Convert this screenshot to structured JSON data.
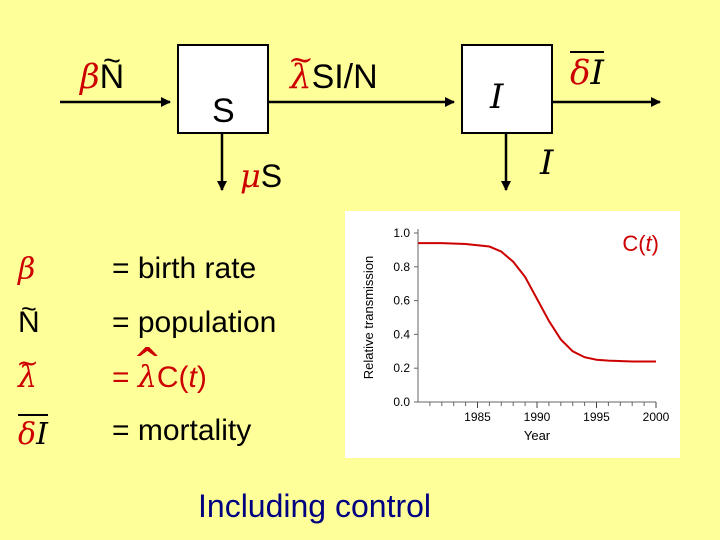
{
  "diagram": {
    "birth_flow": {
      "sym": "β",
      "var": "N"
    },
    "box_s": "S",
    "infection_flow": {
      "sym": "λ",
      "text": "SI/N"
    },
    "box_i": "I",
    "disease_mortality_flow": {
      "sym": "δ",
      "var": "I"
    },
    "natural_death_s": {
      "sym": "μ",
      "var": "S"
    },
    "natural_death_i": "I"
  },
  "legend": [
    {
      "sym": "β",
      "text": "= birth rate"
    },
    {
      "sym": "N",
      "text": "= population"
    },
    {
      "sym": "λ",
      "text_pre": "= ",
      "hat_sym": "λ",
      "text_post": "C(",
      "t": "t",
      "close": ")"
    },
    {
      "sym": "δ",
      "sym_var": "I",
      "text": "= mortality"
    }
  ],
  "chart_data": {
    "type": "line",
    "title": "",
    "annotation": {
      "text_pre": "C(",
      "t": "t",
      "text_post": ")"
    },
    "xlabel": "Year",
    "ylabel": "Relative transmission",
    "xlim": [
      1980,
      2000
    ],
    "ylim": [
      0.0,
      1.0
    ],
    "xticks": [
      "1985",
      "1990",
      "1995",
      "2000"
    ],
    "yticks": [
      "0.0",
      "0.2",
      "0.4",
      "0.6",
      "0.8",
      "1.0"
    ],
    "grid": false,
    "series": [
      {
        "color": "#cc0000",
        "x": [
          1980,
          1982,
          1984,
          1986,
          1987,
          1988,
          1989,
          1990,
          1991,
          1992,
          1993,
          1994,
          1995,
          1996,
          1998,
          2000
        ],
        "y": [
          0.94,
          0.94,
          0.935,
          0.92,
          0.89,
          0.83,
          0.74,
          0.61,
          0.48,
          0.37,
          0.3,
          0.265,
          0.25,
          0.245,
          0.24,
          0.24
        ]
      }
    ]
  },
  "footer": "Including control"
}
